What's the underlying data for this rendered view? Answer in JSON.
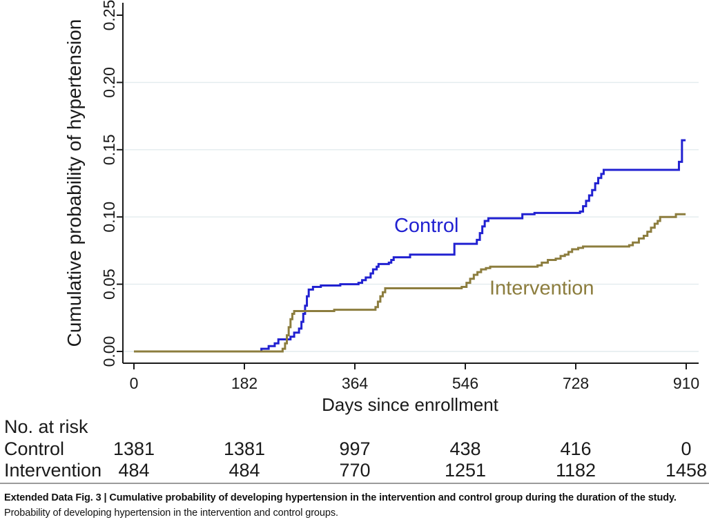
{
  "figure": {
    "caption_bold": "Extended Data Fig. 3 | Cumulative probability of developing hypertension in the intervention and control group during the duration of the study.",
    "caption_regular": "Probability of developing hypertension in the intervention and control groups."
  },
  "chart_data": {
    "type": "line",
    "subtype": "step",
    "title": "",
    "xlabel": "Days since enrollment",
    "ylabel": "Cumulative probability of hypertension",
    "xlim": [
      0,
      910
    ],
    "ylim": [
      0,
      0.25
    ],
    "xticks": [
      0,
      182,
      364,
      546,
      728,
      910
    ],
    "ytick_values": [
      0,
      0.05,
      0.1,
      0.15,
      0.2,
      0.25
    ],
    "ytick_labels": [
      "0.00",
      "0.05",
      "0.10",
      "0.15",
      "0.20",
      "0.25"
    ],
    "grid": true,
    "legend_position": "inline-labels",
    "colors": {
      "axis": "#1a1a1a",
      "grid": "#e2ebee",
      "control": "#2121d1",
      "intervention": "#8c7d3e",
      "text": "#1a1a1a"
    },
    "series": [
      {
        "name": "Control",
        "color": "#2121d1",
        "label_anchor_day": 482,
        "label_anchor_prob": 0.0935,
        "points": [
          [
            0,
            0
          ],
          [
            210,
            0.002
          ],
          [
            222,
            0.004
          ],
          [
            232,
            0.006
          ],
          [
            238,
            0.009
          ],
          [
            258,
            0.011
          ],
          [
            264,
            0.014
          ],
          [
            272,
            0.017
          ],
          [
            276,
            0.022
          ],
          [
            279,
            0.028
          ],
          [
            282,
            0.034
          ],
          [
            285,
            0.041
          ],
          [
            288,
            0.046
          ],
          [
            295,
            0.048
          ],
          [
            308,
            0.049
          ],
          [
            340,
            0.05
          ],
          [
            370,
            0.051
          ],
          [
            376,
            0.053
          ],
          [
            382,
            0.055
          ],
          [
            390,
            0.058
          ],
          [
            394,
            0.061
          ],
          [
            400,
            0.063
          ],
          [
            403,
            0.065
          ],
          [
            420,
            0.066
          ],
          [
            424,
            0.068
          ],
          [
            428,
            0.07
          ],
          [
            455,
            0.072
          ],
          [
            528,
            0.08
          ],
          [
            565,
            0.083
          ],
          [
            570,
            0.088
          ],
          [
            574,
            0.093
          ],
          [
            578,
            0.097
          ],
          [
            584,
            0.099
          ],
          [
            640,
            0.102
          ],
          [
            660,
            0.103
          ],
          [
            735,
            0.104
          ],
          [
            740,
            0.108
          ],
          [
            745,
            0.112
          ],
          [
            750,
            0.116
          ],
          [
            755,
            0.12
          ],
          [
            760,
            0.125
          ],
          [
            765,
            0.129
          ],
          [
            770,
            0.132
          ],
          [
            774,
            0.135
          ],
          [
            898,
            0.141
          ],
          [
            903,
            0.157
          ],
          [
            909,
            0.157
          ]
        ]
      },
      {
        "name": "Intervention",
        "color": "#8c7d3e",
        "label_anchor_day": 672,
        "label_anchor_prob": 0.047,
        "points": [
          [
            0,
            0
          ],
          [
            245,
            0.002
          ],
          [
            249,
            0.006
          ],
          [
            252,
            0.012
          ],
          [
            255,
            0.018
          ],
          [
            258,
            0.024
          ],
          [
            261,
            0.028
          ],
          [
            264,
            0.03
          ],
          [
            330,
            0.031
          ],
          [
            398,
            0.033
          ],
          [
            402,
            0.037
          ],
          [
            406,
            0.041
          ],
          [
            410,
            0.044
          ],
          [
            414,
            0.047
          ],
          [
            540,
            0.048
          ],
          [
            548,
            0.051
          ],
          [
            554,
            0.054
          ],
          [
            560,
            0.057
          ],
          [
            566,
            0.059
          ],
          [
            572,
            0.061
          ],
          [
            580,
            0.062
          ],
          [
            587,
            0.063
          ],
          [
            665,
            0.064
          ],
          [
            672,
            0.066
          ],
          [
            682,
            0.068
          ],
          [
            695,
            0.069
          ],
          [
            703,
            0.071
          ],
          [
            710,
            0.072
          ],
          [
            716,
            0.074
          ],
          [
            722,
            0.076
          ],
          [
            732,
            0.077
          ],
          [
            740,
            0.078
          ],
          [
            816,
            0.079
          ],
          [
            822,
            0.081
          ],
          [
            832,
            0.084
          ],
          [
            840,
            0.086
          ],
          [
            846,
            0.089
          ],
          [
            852,
            0.092
          ],
          [
            858,
            0.095
          ],
          [
            863,
            0.097
          ],
          [
            867,
            0.1
          ],
          [
            893,
            0.102
          ],
          [
            909,
            0.102
          ]
        ]
      }
    ],
    "at_risk": {
      "title": "No. at risk",
      "times": [
        0,
        182,
        364,
        546,
        728,
        910
      ],
      "rows": [
        {
          "name": "Control",
          "values": [
            "1381",
            "1381",
            "997",
            "438",
            "416",
            "0"
          ]
        },
        {
          "name": "Intervention",
          "values": [
            "484",
            "484",
            "770",
            "1251",
            "1182",
            "1458"
          ]
        }
      ]
    }
  }
}
